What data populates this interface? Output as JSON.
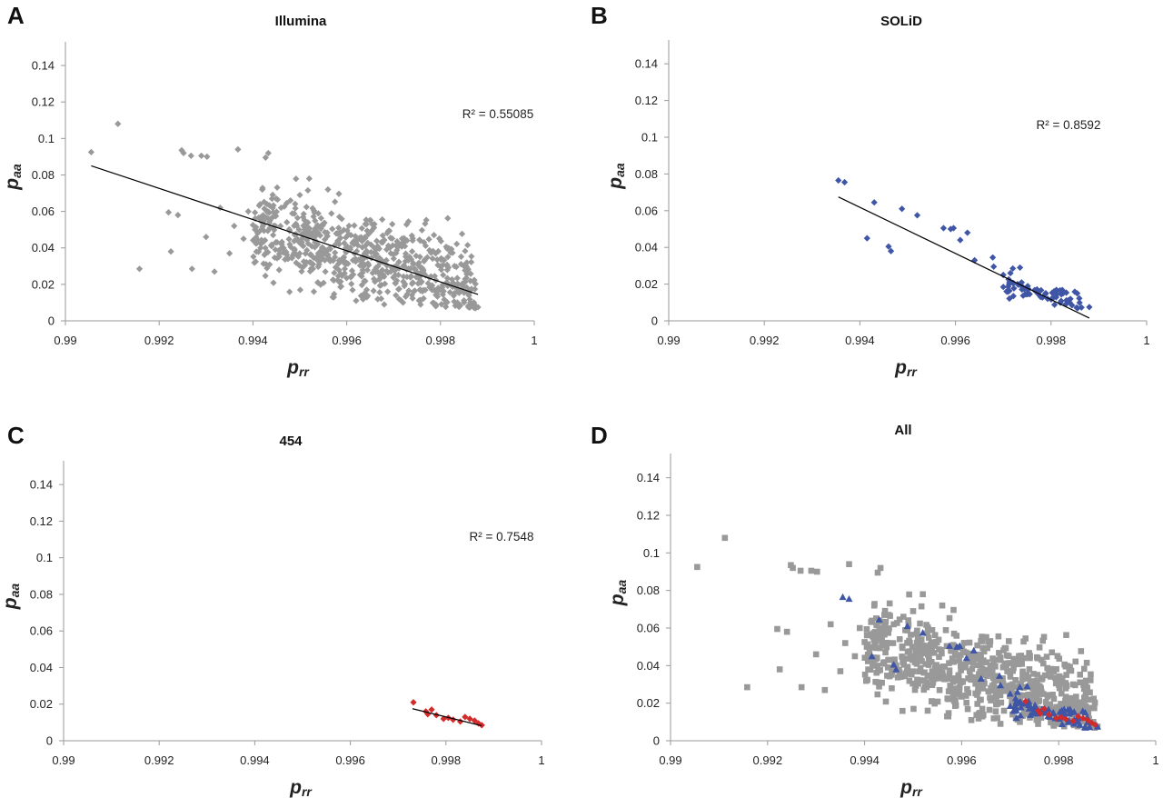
{
  "colors": {
    "illumina": "#999999",
    "solid": "#3F55A5",
    "roche454": "#D22B2B"
  },
  "chart_data": [
    {
      "panel": "A",
      "type": "scatter",
      "title": "Illumina",
      "xlabel_main": "p",
      "xlabel_sub": "rr",
      "ylabel_main": "p",
      "ylabel_sub": "aa",
      "xlim": [
        0.99,
        1.0
      ],
      "ylim": [
        0,
        0.15
      ],
      "xticks": [
        "0.99",
        "0.992",
        "0.994",
        "0.996",
        "0.998",
        "1"
      ],
      "yticks": [
        "0",
        "0.02",
        "0.04",
        "0.06",
        "0.08",
        "0.1",
        "0.12",
        "0.14"
      ],
      "r2_label": "R² = 0.55085",
      "trendline": {
        "x": [
          0.99055,
          0.9988
        ],
        "y": [
          0.085,
          0.0145
        ]
      },
      "series": [
        {
          "marker": "diamond",
          "color": "illumina",
          "cloud": {
            "n": 700,
            "x_range": [
              0.994,
              0.99875
            ],
            "slope": -7.0,
            "x0": 0.9968,
            "y0": 0.032,
            "spread": 0.012,
            "seed": 11
          },
          "points": [
            [
              0.99055,
              0.0925
            ],
            [
              0.99112,
              0.108
            ],
            [
              0.99158,
              0.0285
            ],
            [
              0.9922,
              0.0595
            ],
            [
              0.99225,
              0.038
            ],
            [
              0.99248,
              0.0935
            ],
            [
              0.99252,
              0.092
            ],
            [
              0.99268,
              0.0905
            ],
            [
              0.9929,
              0.0905
            ],
            [
              0.99302,
              0.09
            ],
            [
              0.99318,
              0.027
            ],
            [
              0.9927,
              0.0285
            ],
            [
              0.99368,
              0.094
            ],
            [
              0.99427,
              0.0895
            ],
            [
              0.9924,
              0.058
            ],
            [
              0.993,
              0.046
            ],
            [
              0.9933,
              0.062
            ],
            [
              0.9936,
              0.052
            ],
            [
              0.9939,
              0.06
            ],
            [
              0.9941,
              0.048
            ],
            [
              0.9938,
              0.045
            ],
            [
              0.9935,
              0.037
            ],
            [
              0.9942,
              0.054
            ],
            [
              0.9944,
              0.041
            ],
            [
              0.9952,
              0.078
            ],
            [
              0.9956,
              0.072
            ],
            [
              0.995,
              0.069
            ],
            [
              0.9948,
              0.066
            ],
            [
              0.9953,
              0.016
            ],
            [
              0.9957,
              0.013
            ],
            [
              0.9962,
              0.011
            ],
            [
              0.9968,
              0.009
            ],
            [
              0.9972,
              0.01
            ],
            [
              0.9979,
              0.008
            ],
            [
              0.9984,
              0.009
            ],
            [
              0.9988,
              0.0075
            ],
            [
              0.9943,
              0.064
            ],
            [
              0.9946,
              0.062
            ]
          ]
        }
      ]
    },
    {
      "panel": "B",
      "type": "scatter",
      "title": "SOLiD",
      "xlabel_main": "p",
      "xlabel_sub": "rr",
      "ylabel_main": "p",
      "ylabel_sub": "aa",
      "xlim": [
        0.99,
        1.0
      ],
      "ylim": [
        0,
        0.15
      ],
      "xticks": [
        "0.99",
        "0.992",
        "0.994",
        "0.996",
        "0.998",
        "1"
      ],
      "yticks": [
        "0",
        "0.02",
        "0.04",
        "0.06",
        "0.08",
        "0.1",
        "0.12",
        "0.14"
      ],
      "r2_label": "R² = 0.8592",
      "trendline": {
        "x": [
          0.99355,
          0.9988
        ],
        "y": [
          0.0675,
          0.0015
        ]
      },
      "series": [
        {
          "marker": "diamond",
          "color": "solid",
          "cloud": {
            "n": 70,
            "x_range": [
              0.997,
              0.9987
            ],
            "slope": -6.8,
            "x0": 0.9977,
            "y0": 0.015,
            "spread": 0.0025,
            "seed": 23
          },
          "points": [
            [
              0.99355,
              0.0765
            ],
            [
              0.99368,
              0.0755
            ],
            [
              0.99415,
              0.045
            ],
            [
              0.9943,
              0.0645
            ],
            [
              0.9946,
              0.0405
            ],
            [
              0.99465,
              0.038
            ],
            [
              0.99488,
              0.061
            ],
            [
              0.9952,
              0.0575
            ],
            [
              0.99575,
              0.0505
            ],
            [
              0.9959,
              0.05
            ],
            [
              0.99596,
              0.0505
            ],
            [
              0.99625,
              0.048
            ],
            [
              0.9961,
              0.044
            ],
            [
              0.9964,
              0.033
            ],
            [
              0.99678,
              0.0345
            ],
            [
              0.9968,
              0.0295
            ],
            [
              0.997,
              0.025
            ],
            [
              0.99715,
              0.026
            ],
            [
              0.9973,
              0.02
            ],
            [
              0.9972,
              0.0285
            ],
            [
              0.99735,
              0.029
            ],
            [
              0.9988,
              0.0075
            ]
          ]
        }
      ]
    },
    {
      "panel": "C",
      "type": "scatter",
      "title": "454",
      "xlabel_main": "p",
      "xlabel_sub": "rr",
      "ylabel_main": "p",
      "ylabel_sub": "aa",
      "xlim": [
        0.99,
        1.0
      ],
      "ylim": [
        0,
        0.15
      ],
      "xticks": [
        "0.99",
        "0.992",
        "0.994",
        "0.996",
        "0.998",
        "1"
      ],
      "yticks": [
        "0",
        "0.02",
        "0.04",
        "0.06",
        "0.08",
        "0.1",
        "0.12",
        "0.14"
      ],
      "r2_label": "R² = 0.7548",
      "trendline": {
        "x": [
          0.9973,
          0.99875
        ],
        "y": [
          0.0175,
          0.0082
        ]
      },
      "series": [
        {
          "marker": "diamond",
          "color": "roche454",
          "points": [
            [
              0.99732,
              0.021
            ],
            [
              0.99758,
              0.016
            ],
            [
              0.99762,
              0.0145
            ],
            [
              0.9977,
              0.017
            ],
            [
              0.9978,
              0.014
            ],
            [
              0.99795,
              0.012
            ],
            [
              0.99805,
              0.0125
            ],
            [
              0.99815,
              0.0115
            ],
            [
              0.9983,
              0.0105
            ],
            [
              0.9984,
              0.013
            ],
            [
              0.9985,
              0.012
            ],
            [
              0.9986,
              0.011
            ],
            [
              0.99868,
              0.0095
            ],
            [
              0.99875,
              0.0085
            ]
          ]
        }
      ]
    },
    {
      "panel": "D",
      "type": "scatter",
      "title": "All",
      "xlabel_main": "p",
      "xlabel_sub": "rr",
      "ylabel_main": "p",
      "ylabel_sub": "aa",
      "xlim": [
        0.99,
        1.0
      ],
      "ylim": [
        0,
        0.15
      ],
      "xticks": [
        "0.99",
        "0.992",
        "0.994",
        "0.996",
        "0.998",
        "1"
      ],
      "yticks": [
        "0",
        "0.02",
        "0.04",
        "0.06",
        "0.08",
        "0.1",
        "0.12",
        "0.14"
      ],
      "r2_label": "",
      "series": [
        {
          "marker": "square",
          "color": "illumina",
          "same_as_panel": "A"
        },
        {
          "marker": "triangle",
          "color": "solid",
          "same_as_panel": "B"
        },
        {
          "marker": "diamond",
          "color": "roche454",
          "same_as_panel": "C"
        }
      ]
    }
  ]
}
